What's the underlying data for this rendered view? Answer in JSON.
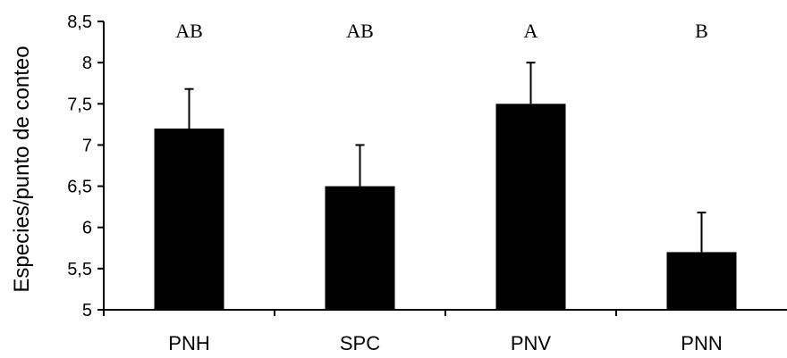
{
  "chart_data": {
    "type": "bar",
    "title": "",
    "xlabel": "",
    "ylabel": "Especies/punto de conteo",
    "categories": [
      "PNH",
      "SPC",
      "PNV",
      "PNN"
    ],
    "values": [
      7.2,
      6.5,
      7.5,
      5.7
    ],
    "error_upper": [
      7.68,
      7.0,
      8.0,
      6.18
    ],
    "significance_labels": [
      "AB",
      "AB",
      "A",
      "B"
    ],
    "ylim": [
      5,
      8.5
    ],
    "yticks": [
      5,
      5.5,
      6,
      6.5,
      7,
      7.5,
      8,
      8.5
    ],
    "ytick_labels": [
      "5",
      "5,5",
      "6",
      "6,5",
      "7",
      "7,5",
      "8",
      "8,5"
    ],
    "grid": false,
    "bar_color": "#000000",
    "axis_color": "#000000"
  }
}
